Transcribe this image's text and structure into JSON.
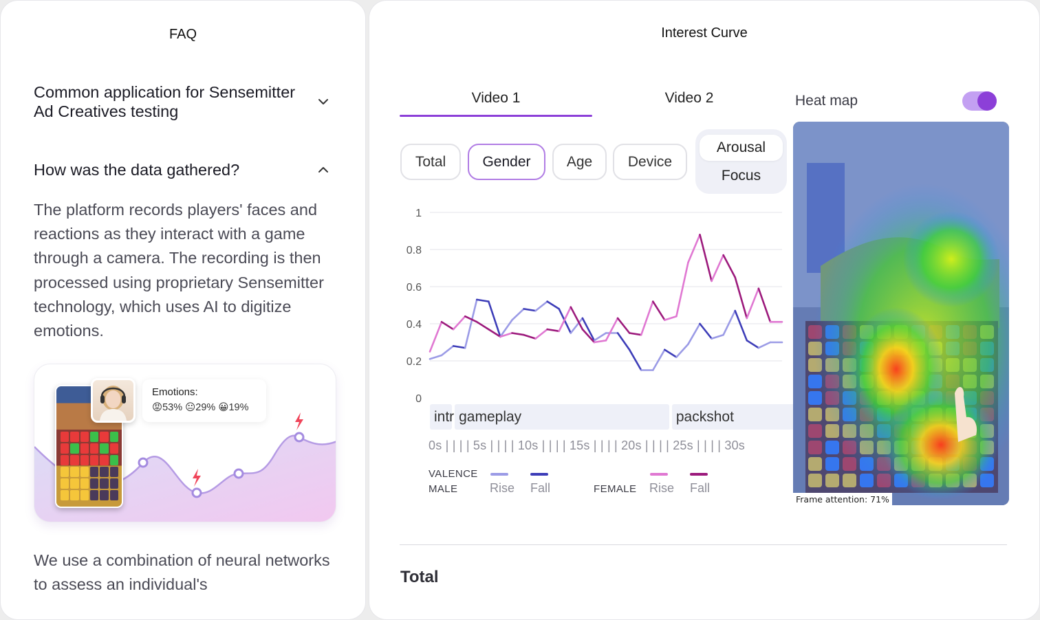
{
  "faq": {
    "title": "FAQ",
    "items": [
      {
        "question": "Common application for Sensemitter Ad Creatives testing",
        "expanded": false
      },
      {
        "question": "How was the data gathered?",
        "expanded": true,
        "answer": "The platform records players' faces and reactions as they interact with a game through a camera. The recording is then processed using proprietary Sensemitter technology, which uses AI to digitize emotions."
      }
    ],
    "illustration": {
      "emotions_title": "Emotions:",
      "emotions_values": "😡53% 😐29% 😀19%"
    },
    "more_text": "We use a combination of neural networks to assess an individual's"
  },
  "curve": {
    "title": "Interest Curve",
    "tabs": [
      {
        "label": "Video 1",
        "active": true
      },
      {
        "label": "Video 2",
        "active": false
      }
    ],
    "heatmap_label": "Heat map",
    "heatmap_on": true,
    "filters": [
      {
        "label": "Total",
        "active": false
      },
      {
        "label": "Gender",
        "active": true
      },
      {
        "label": "Age",
        "active": false
      },
      {
        "label": "Device",
        "active": false
      }
    ],
    "metrics": [
      {
        "label": "Arousal",
        "selected": true
      },
      {
        "label": "Focus",
        "selected": false
      }
    ],
    "phases": [
      {
        "label": "intro",
        "start": 0,
        "end": 2
      },
      {
        "label": "gameplay",
        "start": 2,
        "end": 20.5
      },
      {
        "label": "packshot",
        "start": 20.5,
        "end": 30
      }
    ],
    "timeline": "0s | | | | 5s | | | | 10s | | | | 15s | | | | 20s | | | | 25s | | | | 30s",
    "legend": {
      "valence": "VALENCE",
      "male": "MALE",
      "female": "FEMALE",
      "rise": "Rise",
      "fall": "Fall"
    },
    "frame_attention": "Frame attention: 71%",
    "total_title": "Total"
  },
  "colors": {
    "accent": "#8c3fd8",
    "male_rise": "#9b9be6",
    "male_fall": "#3d3db8",
    "female_rise": "#e078d2",
    "female_fall": "#9c1a7c"
  },
  "chart_data": {
    "type": "line",
    "xlim": [
      0,
      30
    ],
    "ylim": [
      0,
      1
    ],
    "yticks": [
      "0",
      "0.2",
      "0.4",
      "0.6",
      "0.8",
      "1"
    ],
    "grid": true,
    "series": [
      {
        "name": "MALE",
        "x": [
          0,
          1,
          2,
          3,
          4,
          5,
          6,
          7,
          8,
          9,
          10,
          11,
          12,
          13,
          14,
          15,
          16,
          17,
          18,
          19,
          20,
          21,
          22,
          23,
          24,
          25,
          26,
          27,
          28,
          29,
          30
        ],
        "values": [
          0.21,
          0.23,
          0.28,
          0.27,
          0.53,
          0.52,
          0.33,
          0.42,
          0.48,
          0.47,
          0.52,
          0.48,
          0.35,
          0.43,
          0.31,
          0.35,
          0.35,
          0.26,
          0.15,
          0.15,
          0.26,
          0.22,
          0.29,
          0.4,
          0.32,
          0.34,
          0.47,
          0.31,
          0.27,
          0.3,
          0.3
        ]
      },
      {
        "name": "FEMALE",
        "x": [
          0,
          1,
          2,
          3,
          4,
          5,
          6,
          7,
          8,
          9,
          10,
          11,
          12,
          13,
          14,
          15,
          16,
          17,
          18,
          19,
          20,
          21,
          22,
          23,
          24,
          25,
          26,
          27,
          28,
          29,
          30
        ],
        "values": [
          0.25,
          0.41,
          0.37,
          0.44,
          0.41,
          0.37,
          0.33,
          0.35,
          0.34,
          0.32,
          0.37,
          0.36,
          0.49,
          0.37,
          0.3,
          0.31,
          0.43,
          0.35,
          0.34,
          0.52,
          0.42,
          0.44,
          0.73,
          0.88,
          0.63,
          0.77,
          0.65,
          0.43,
          0.59,
          0.41,
          0.41
        ]
      }
    ]
  }
}
